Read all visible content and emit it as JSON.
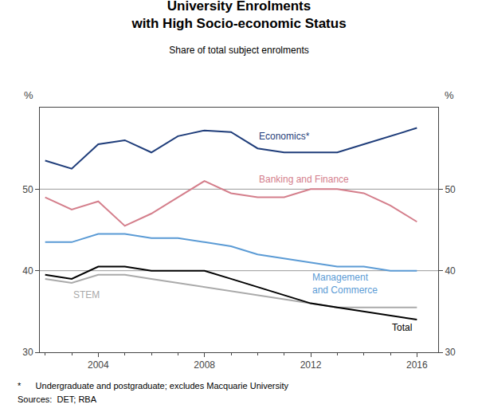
{
  "chart_data": {
    "type": "line",
    "title": "University Enrolments\nwith High Socio-economic Status",
    "subtitle": "Share of total subject enrolments",
    "ylabel": "%",
    "y2label": "%",
    "x": [
      2002,
      2003,
      2004,
      2005,
      2006,
      2007,
      2008,
      2009,
      2010,
      2011,
      2012,
      2013,
      2014,
      2015,
      2016
    ],
    "xlim": [
      2001.8,
      2016.8
    ],
    "xticks": [
      2004,
      2008,
      2012,
      2016
    ],
    "ylim": [
      30,
      60
    ],
    "yticks": [
      30,
      40,
      50
    ],
    "y2lim": [
      30,
      60
    ],
    "y2ticks": [
      30,
      40,
      50
    ],
    "grid": false,
    "background_color": "#ffffff",
    "series": [
      {
        "name": "Economics*",
        "color": "#1f3d7a",
        "values": [
          53.5,
          52.5,
          55.5,
          56.0,
          54.5,
          56.5,
          57.2,
          57.0,
          55.0,
          54.5,
          54.5,
          54.5,
          55.5,
          56.5,
          57.5
        ]
      },
      {
        "name": "Banking and Finance",
        "color": "#d47e8b",
        "values": [
          49.0,
          47.5,
          48.5,
          45.5,
          47.0,
          49.0,
          51.0,
          49.5,
          49.0,
          49.0,
          50.0,
          50.0,
          49.5,
          48.0,
          46.0
        ]
      },
      {
        "name": "Management\nand Commerce",
        "color": "#5b9bd5",
        "values": [
          43.5,
          43.5,
          44.5,
          44.5,
          44.0,
          44.0,
          43.5,
          43.0,
          42.0,
          41.5,
          41.0,
          40.5,
          40.5,
          40.0,
          40.0
        ]
      },
      {
        "name": "STEM",
        "color": "#aaaaaa",
        "values": [
          39.0,
          38.5,
          39.5,
          39.5,
          39.0,
          38.5,
          38.0,
          37.5,
          37.0,
          36.5,
          36.0,
          35.5,
          35.5,
          35.5,
          35.5
        ]
      },
      {
        "name": "Total",
        "color": "#000000",
        "values": [
          39.5,
          39.0,
          40.5,
          40.5,
          40.0,
          40.0,
          40.0,
          39.0,
          38.0,
          37.0,
          36.0,
          35.5,
          35.0,
          34.5,
          34.0
        ]
      }
    ],
    "reference_lines": {
      "values": [
        50,
        40
      ],
      "color": "#999999"
    },
    "footnotes": [
      "*      Undergraduate and postgraduate; excludes Macquarie University",
      "Sources:  DET; RBA"
    ]
  }
}
